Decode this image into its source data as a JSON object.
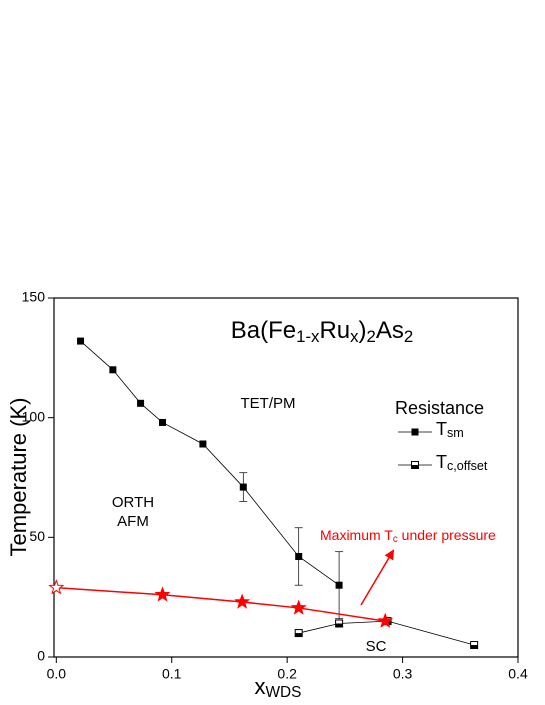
{
  "chart_data": {
    "type": "scatter",
    "title_parts": [
      {
        "text": "Ba(Fe"
      },
      {
        "text": "1-x",
        "sub": true
      },
      {
        "text": "Ru"
      },
      {
        "text": "x",
        "sub": true
      },
      {
        "text": ")"
      },
      {
        "text": "2",
        "sub": true
      },
      {
        "text": "As"
      },
      {
        "text": "2",
        "sub": true
      }
    ],
    "x_label_parts": [
      {
        "text": "x"
      },
      {
        "text": "WDS",
        "sub": true
      }
    ],
    "y_label": "Temperature (K)",
    "legend_title": "Resistance",
    "annotation_parts": [
      {
        "text": "Maximum T"
      },
      {
        "text": "c",
        "sub": true
      },
      {
        "text": " under pressure"
      }
    ],
    "regions": [
      "TET/PM",
      "ORTH",
      "AFM",
      "SC"
    ],
    "xlim": [
      -0.002,
      0.4
    ],
    "ylim": [
      0,
      150
    ],
    "xticks": [
      {
        "value": 0,
        "label": "0.0"
      },
      0.1,
      0.2,
      0.3,
      0.4
    ],
    "yticks": [
      0,
      50,
      100,
      150
    ],
    "series": [
      {
        "name_parts": [
          "T",
          "sm"
        ],
        "color": "#000000",
        "marker": "square",
        "x": [
          0.021,
          0.049,
          0.073,
          0.092,
          0.127,
          0.162,
          0.21,
          0.245
        ],
        "values": [
          132,
          120,
          106,
          98,
          89,
          71,
          42,
          30
        ],
        "errors": [
          null,
          null,
          null,
          null,
          null,
          6,
          12,
          14
        ]
      },
      {
        "name_parts": [
          "T",
          "c,offset"
        ],
        "color": "#000000",
        "marker": "half-square",
        "x": [
          0.21,
          0.245,
          0.287,
          0.362
        ],
        "values": [
          10,
          14,
          15,
          5
        ]
      },
      {
        "color": "#ff0000",
        "marker": "star",
        "open_points": [
          0
        ],
        "x": [
          0,
          0.092,
          0.161,
          0.21,
          0.285
        ],
        "values": [
          29,
          26,
          23,
          20.5,
          15
        ]
      }
    ]
  }
}
